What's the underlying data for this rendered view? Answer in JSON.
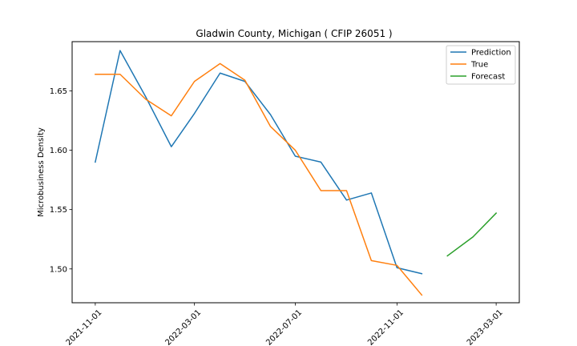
{
  "chart_data": {
    "type": "line",
    "title": "Gladwin County, Michigan ( CFIP 26051 )",
    "xlabel": "",
    "ylabel": "Microbusiness Density",
    "ylim": [
      1.4715,
      1.6915
    ],
    "xlim": [
      "2021-10-04",
      "2023-03-29"
    ],
    "x_ticks": [
      "2021-11-01",
      "2022-03-01",
      "2022-07-01",
      "2022-11-01",
      "2023-03-01"
    ],
    "y_ticks": [
      1.5,
      1.55,
      1.6,
      1.65
    ],
    "y_tick_labels": [
      "1.50",
      "1.55",
      "1.60",
      "1.65"
    ],
    "grid": false,
    "legend_position": "top-right",
    "series": [
      {
        "name": "Prediction",
        "color": "#1f77b4",
        "x": [
          "2021-11-01",
          "2021-12-01",
          "2022-01-01",
          "2022-02-01",
          "2022-03-01",
          "2022-04-01",
          "2022-05-01",
          "2022-06-01",
          "2022-07-01",
          "2022-08-01",
          "2022-09-01",
          "2022-10-01",
          "2022-11-01",
          "2022-12-01"
        ],
        "values": [
          1.59,
          1.684,
          1.645,
          1.603,
          1.631,
          1.665,
          1.658,
          1.63,
          1.595,
          1.59,
          1.558,
          1.564,
          1.501,
          1.496
        ]
      },
      {
        "name": "True",
        "color": "#ff7f0e",
        "x": [
          "2021-11-01",
          "2021-12-01",
          "2022-01-01",
          "2022-02-01",
          "2022-03-01",
          "2022-04-01",
          "2022-05-01",
          "2022-06-01",
          "2022-07-01",
          "2022-08-01",
          "2022-09-01",
          "2022-10-01",
          "2022-11-01",
          "2022-12-01"
        ],
        "values": [
          1.664,
          1.664,
          1.643,
          1.629,
          1.658,
          1.673,
          1.659,
          1.62,
          1.6,
          1.566,
          1.566,
          1.507,
          1.503,
          1.478
        ]
      },
      {
        "name": "Forecast",
        "color": "#2ca02c",
        "x": [
          "2023-01-01",
          "2023-02-01",
          "2023-03-01"
        ],
        "values": [
          1.511,
          1.527,
          1.547
        ]
      }
    ]
  }
}
